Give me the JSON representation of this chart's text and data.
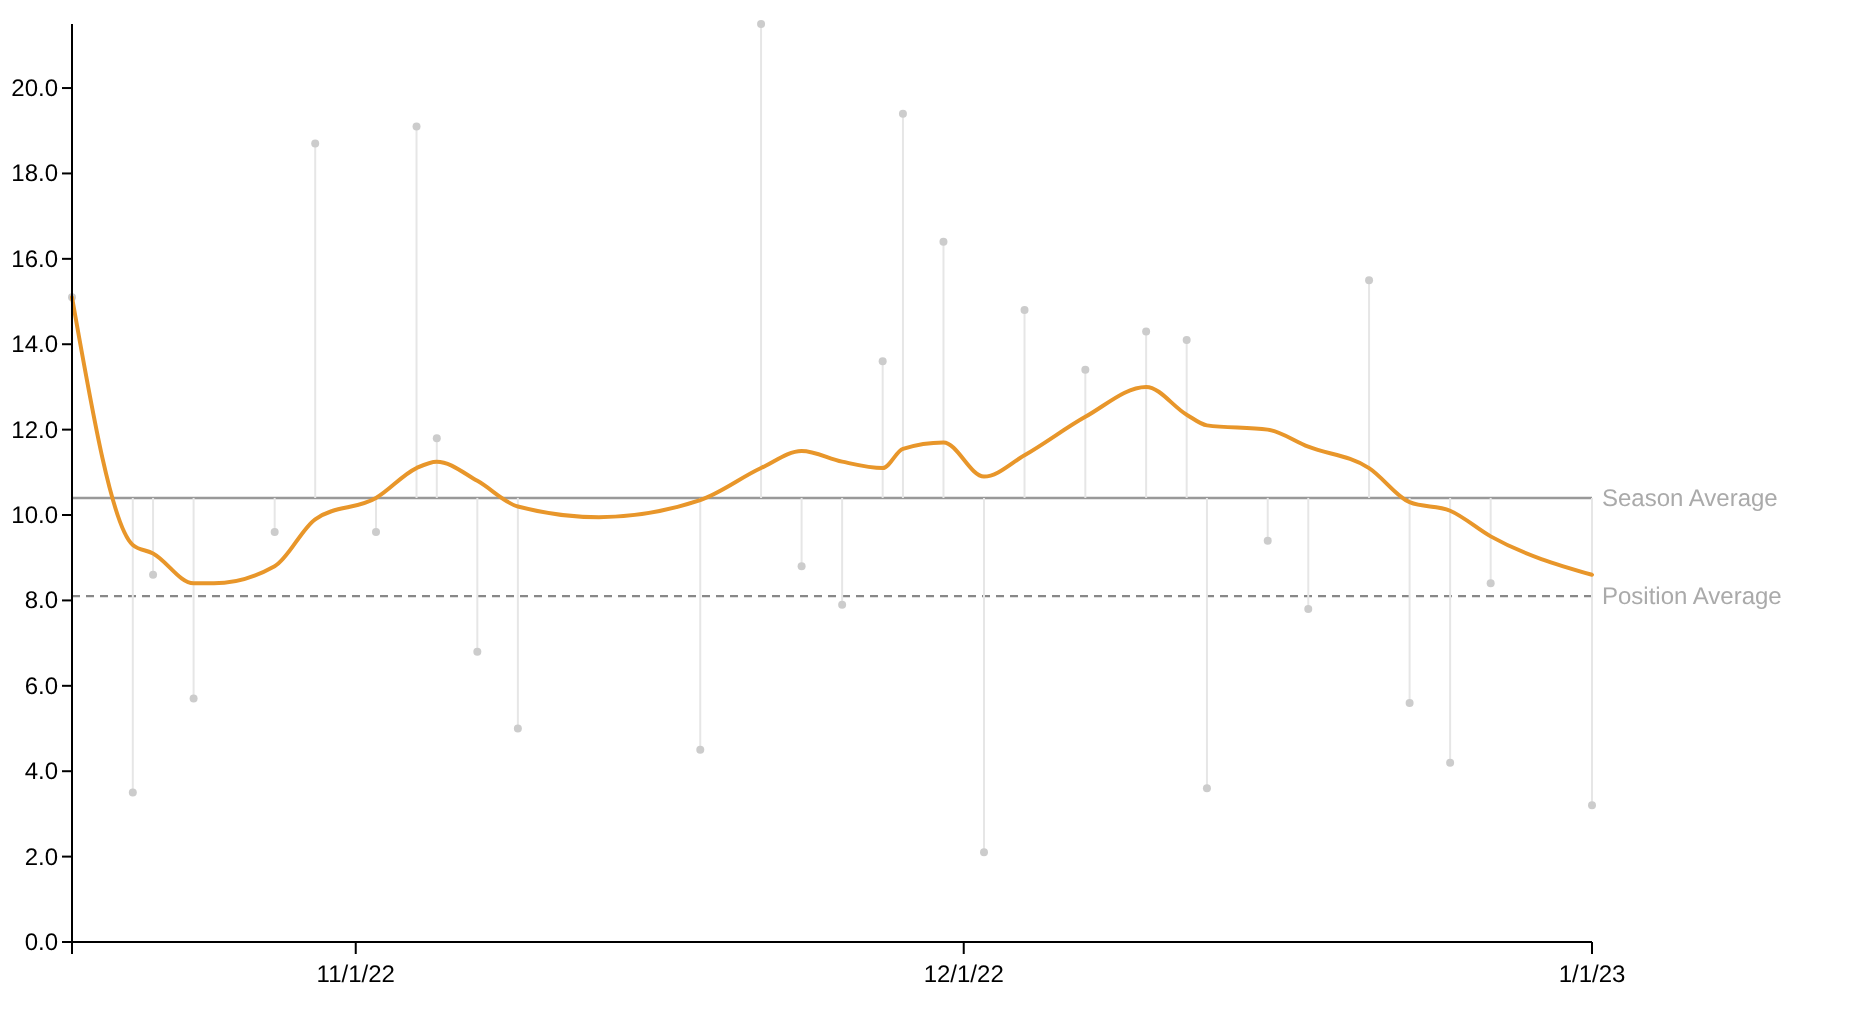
{
  "chart_data": {
    "type": "scatter",
    "xlim": [
      "2022-10-18",
      "2023-01-01"
    ],
    "ylim": [
      0,
      21.5
    ],
    "xticks": [
      {
        "value": "2022-11-01",
        "label": "11/1/22"
      },
      {
        "value": "2022-12-01",
        "label": "12/1/22"
      },
      {
        "value": "2023-01-01",
        "label": "1/1/23"
      }
    ],
    "yticks": [
      {
        "value": 0,
        "label": "0.0"
      },
      {
        "value": 2,
        "label": "2.0"
      },
      {
        "value": 4,
        "label": "4.0"
      },
      {
        "value": 6,
        "label": "6.0"
      },
      {
        "value": 8,
        "label": "8.0"
      },
      {
        "value": 10,
        "label": "10.0"
      },
      {
        "value": 12,
        "label": "12.0"
      },
      {
        "value": 14,
        "label": "14.0"
      },
      {
        "value": 16,
        "label": "16.0"
      },
      {
        "value": 18,
        "label": "18.0"
      },
      {
        "value": 20,
        "label": "20.0"
      }
    ],
    "grid": false,
    "series": [
      {
        "color": "#cccccc",
        "marker": "circle",
        "errors": [
          [
            10.4,
            15.1
          ],
          [
            3.5,
            10.4
          ],
          [
            8.6,
            10.4
          ],
          [
            5.7,
            10.4
          ],
          [
            9.6,
            10.4
          ],
          [
            10.4,
            18.7
          ],
          [
            9.6,
            10.4
          ],
          [
            10.4,
            19.1
          ],
          [
            10.4,
            11.8
          ],
          [
            6.8,
            10.4
          ],
          [
            5.0,
            10.4
          ],
          [
            4.5,
            10.4
          ],
          [
            10.4,
            21.5
          ],
          [
            8.8,
            10.4
          ],
          [
            7.9,
            10.4
          ],
          [
            10.4,
            13.6
          ],
          [
            10.4,
            19.4
          ],
          [
            10.4,
            16.4
          ],
          [
            2.1,
            10.4
          ],
          [
            10.4,
            14.8
          ],
          [
            10.4,
            13.4
          ],
          [
            10.4,
            14.3
          ],
          [
            10.4,
            14.1
          ],
          [
            3.6,
            10.4
          ],
          [
            9.4,
            10.4
          ],
          [
            7.8,
            10.4
          ],
          [
            10.4,
            15.5
          ],
          [
            5.6,
            10.4
          ],
          [
            4.2,
            10.4
          ],
          [
            8.4,
            10.4
          ],
          [
            3.2,
            10.4
          ]
        ],
        "x": [
          "2022-10-18",
          "2022-10-21",
          "2022-10-22",
          "2022-10-24",
          "2022-10-28",
          "2022-10-30",
          "2022-11-02",
          "2022-11-04",
          "2022-11-05",
          "2022-11-07",
          "2022-11-09",
          "2022-11-18",
          "2022-11-21",
          "2022-11-23",
          "2022-11-25",
          "2022-11-27",
          "2022-11-28",
          "2022-11-30",
          "2022-12-02",
          "2022-12-04",
          "2022-12-07",
          "2022-12-10",
          "2022-12-12",
          "2022-12-13",
          "2022-12-16",
          "2022-12-18",
          "2022-12-21",
          "2022-12-23",
          "2022-12-25",
          "2022-12-27",
          "2023-01-01"
        ],
        "values": [
          15.1,
          3.5,
          8.6,
          5.7,
          9.6,
          18.7,
          9.6,
          19.1,
          11.8,
          6.8,
          5.0,
          4.5,
          21.5,
          8.8,
          7.9,
          13.6,
          19.4,
          16.4,
          2.1,
          14.8,
          13.4,
          14.3,
          14.1,
          3.6,
          9.4,
          7.8,
          15.5,
          5.6,
          4.2,
          8.4,
          3.2
        ]
      },
      {
        "type": "line",
        "color": "#e8962a",
        "marker": "none",
        "line_style": "solid",
        "x": [
          "2022-10-18",
          "2022-10-21",
          "2022-10-22",
          "2022-10-24",
          "2022-10-25",
          "2022-10-28",
          "2022-10-30",
          "2022-11-02",
          "2022-11-04",
          "2022-11-05",
          "2022-11-07",
          "2022-11-09",
          "2022-11-13",
          "2022-11-18",
          "2022-11-21",
          "2022-11-23",
          "2022-11-25",
          "2022-11-27",
          "2022-11-28",
          "2022-11-30",
          "2022-12-02",
          "2022-12-04",
          "2022-12-07",
          "2022-12-10",
          "2022-12-12",
          "2022-12-13",
          "2022-12-16",
          "2022-12-18",
          "2022-12-21",
          "2022-12-23",
          "2022-12-25",
          "2022-12-27",
          "2023-01-01"
        ],
        "values": [
          15.1,
          9.3,
          9.1,
          8.4,
          8.4,
          8.8,
          9.9,
          10.4,
          11.1,
          11.25,
          10.8,
          10.2,
          9.95,
          10.35,
          11.1,
          11.5,
          11.25,
          11.1,
          11.55,
          11.7,
          10.9,
          11.4,
          12.3,
          13.0,
          12.35,
          12.1,
          12.0,
          11.6,
          11.1,
          10.3,
          10.1,
          9.5,
          8.6
        ]
      }
    ],
    "ref_lines": [
      {
        "axis": "y",
        "value": 10.4,
        "label": "Season Average",
        "color": "#999999",
        "line_style": "solid"
      },
      {
        "axis": "y",
        "value": 8.1,
        "label": "Position Average",
        "color": "#888888",
        "line_style": "dashed"
      }
    ]
  }
}
